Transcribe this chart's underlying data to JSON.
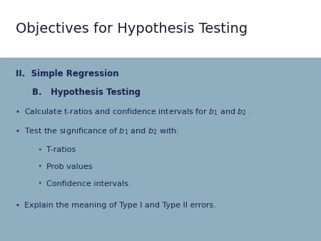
{
  "title": "Objectives for Hypothesis Testing",
  "title_fontsize": 14,
  "title_color": "#1a1a2e",
  "content_bg": "#8fafc0",
  "slide_bg": "#ffffff",
  "heading1": "II.  Simple Regression",
  "heading2": "B.   Hypothesis Testing",
  "heading_color": "#1a2050",
  "bullet_color": "#1a2050",
  "sub_bullets": [
    "T-ratios",
    "Prob values",
    "Confidence intervals."
  ],
  "bullet3_text": "Explain the meaning of Type I and Type II errors.",
  "content_split": 0.76,
  "fs_heading": 8.5,
  "fs_body": 8.0
}
